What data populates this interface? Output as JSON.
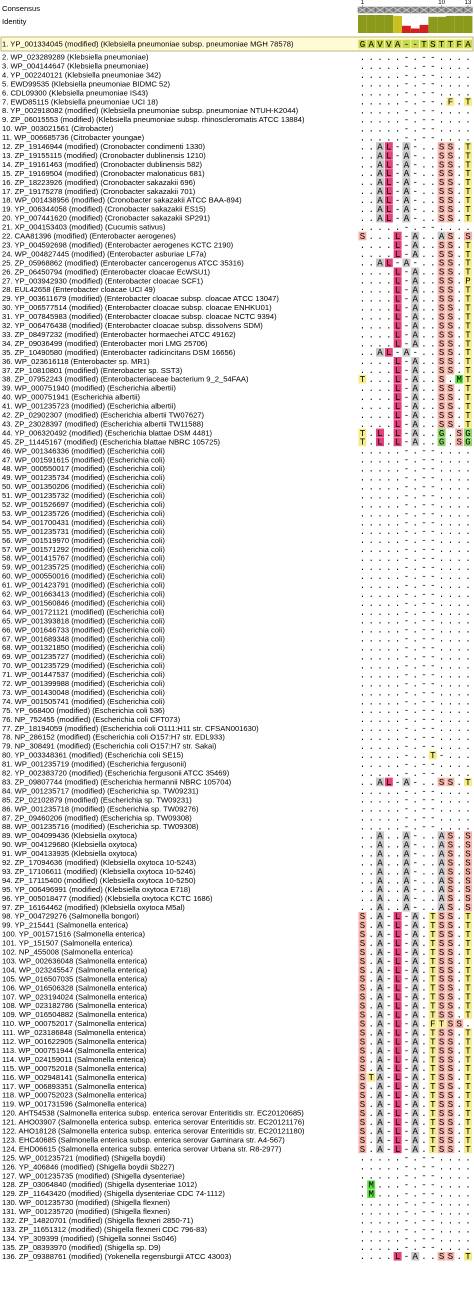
{
  "header": {
    "consensus_label": "Consensus",
    "identity_label": "Identity",
    "column_ticks": [
      1,
      10,
      13
    ]
  },
  "identity": {
    "values": [
      100,
      100,
      100,
      100,
      95,
      40,
      25,
      45,
      90,
      90,
      95,
      95,
      95
    ],
    "colors": [
      "#8b9a1a",
      "#8b9a1a",
      "#8b9a1a",
      "#8b9a1a",
      "#c8c020",
      "#d02020",
      "#d02020",
      "#d02020",
      "#8b9a1a",
      "#8b9a1a",
      "#8b9a1a",
      "#8b9a1a",
      "#8b9a1a"
    ]
  },
  "residue_colors": {
    "S": "#f3b4aa",
    "T": "#f5ec8c",
    "A": "#c8c8c8",
    "L": "#e2437c",
    "G": "#8fd46a",
    "F": "#f5ec8c",
    "M": "#5fdc40",
    "P": "#f5ec8c",
    "V": "#f5ec8c",
    "I": "#e2437c"
  },
  "rows": [
    [
      "1. YP_001334045 (modified) (Klebsiella pneumoniae subsp. pneumoniae MGH 78578)",
      "GAVVA--TSTTFA"
    ],
    [
      "2. WP_023289289 (Klebsiella pneumoniae)",
      ".....-.--...."
    ],
    [
      "3. WP_004144647 (Klebsiella pneumoniae)",
      ".....-.--...."
    ],
    [
      "4. YP_002240121 (Klebsiella pneumoniae 342)",
      ".....-.--...."
    ],
    [
      "5. EWD99535 (Klebsiella pneumoniae BIDMC 52)",
      ".....-.--...."
    ],
    [
      "6. CDL09300 (Klebsiella pneumoniae IS43)",
      ".....-.--...."
    ],
    [
      "7. EWD85115 (Klebsiella pneumoniae UCI 18)",
      ".....-.--.F.T"
    ],
    [
      "8. YP_002918082 (modified) (Klebsiella pneumoniae subsp. pneumoniae NTUH-K2044)",
      ".....-.--...."
    ],
    [
      "9. ZP_06015553 (modified) (Klebsiella pneumoniae subsp. rhinoscleromatis ATCC 13884)",
      ".....-.--...."
    ],
    [
      "10. WP_003021561 (Citrobacter)",
      ".....-.--...."
    ],
    [
      "11. WP_006685736 (Citrobacter youngae)",
      ".....-.--...."
    ],
    [
      "12. ZP_19146944 (modified) (Cronobacter condimenti 1330)",
      "..AL-A-..SS.T"
    ],
    [
      "13. ZP_19155115 (modified) (Cronobacter dublinensis 1210)",
      "..AL-A-..SS.T"
    ],
    [
      "14. ZP_19161463 (modified) (Cronobacter dublinensis 582)",
      "..AL-A-..SS.T"
    ],
    [
      "15. ZP_19169504 (modified) (Cronobacter malonaticus 681)",
      "..AL-A-..SS.T"
    ],
    [
      "16. ZP_18223926 (modified) (Cronobacter sakazakii 696)",
      "..AL-A-..SS.T"
    ],
    [
      "17. ZP_19175278 (modified) (Cronobacter sakazakii 701)",
      "..AL-A-..SS.T"
    ],
    [
      "18. WP_001438956 (modified) (Cronobacter sakazakii ATCC BAA-894)",
      "..AL-A-..SS.T"
    ],
    [
      "19. YP_006344058 (modified) (Cronobacter sakazakii ES15)",
      "..AL-A-..SS.T"
    ],
    [
      "20. YP_007441620 (modified) (Cronobacter sakazakii SP291)",
      "..AL-A-..SS.T"
    ],
    [
      "21. XP_004153403 (modified) (Cucumis sativus)",
      ".....-.--...."
    ],
    [
      "22. CAA81396 (modified) (Enterobacter aerogenes)",
      "S...L-A..AS.S"
    ],
    [
      "23. YP_004592698 (modified) (Enterobacter aerogenes KCTC 2190)",
      "....L-A..SS.T"
    ],
    [
      "24. WP_004827445 (modified) (Enterobacter asburiae LF7a)",
      "....L-A..SS.T"
    ],
    [
      "25. ZP_05968862 (modified) (Enterobacter cancerogenus ATCC 35316)",
      "..AL-A-..SS.T"
    ],
    [
      "26. ZP_06450794 (modified) (Enterobacter cloacae EcWSU1)",
      "....L-A..SS.T"
    ],
    [
      "27. YP_003942930 (modified) (Enterobacter cloacae SCF1)",
      "....L-A..SS.P"
    ],
    [
      "28. EUL42658 (Enterobacter cloacae UCI 49)",
      "....L-A..SS.T"
    ],
    [
      "29. YP_003611679 (modified) (Enterobacter cloacae subsp. cloacae ATCC 13047)",
      "....L-A..SS.T"
    ],
    [
      "30. YP_006577514 (modified) (Enterobacter cloacae subsp. cloacae ENHKU01)",
      "....L-A..SS.T"
    ],
    [
      "31. YP_007845983 (modified) (Enterobacter cloacae subsp. cloacae NCTC 9394)",
      "....L-A..SS.T"
    ],
    [
      "32. YP_006476438 (modified) (Enterobacter cloacae subsp. dissolvens SDM)",
      "....L-A..SS.T"
    ],
    [
      "33. ZP_08497232 (modified) (Enterobacter hormaechei ATCC 49162)",
      "....L-A..SS.T"
    ],
    [
      "34. ZP_09036499 (modified) (Enterobacter mori LMG 25706)",
      "....L-A..SS.T"
    ],
    [
      "35. ZP_10490580 (modified) (Enterobacter radicincitans DSM 16656)",
      "..AL-A-..SS.T"
    ],
    [
      "36. WP_023616118 (Enterobacter sp. MR1)",
      "....L-A..SS.T"
    ],
    [
      "37. ZP_10810801 (modified) (Enterobacter sp. SST3)",
      "....L-A..SS.T"
    ],
    [
      "38. ZP_07952243 (modified) (Enterobacteriaceae bacterium 9_2_54FAA)",
      "T...L-A..S.MT"
    ],
    [
      "39. WP_000751940 (modified) (Escherichia albertii)",
      "....L-A..SS.T"
    ],
    [
      "40. WP_000751941 (Escherichia albertii)",
      "....L-A..SS.T"
    ],
    [
      "41. WP_001235723 (modified) (Escherichia albertii)",
      "....L-A..SS.T"
    ],
    [
      "42. ZP_02902307 (modified) (Escherichia albertii TW07627)",
      "....L-A..SS.T"
    ],
    [
      "43. ZP_23028397 (modified) (Escherichia albertii TW11588)",
      "....L-A..SS.T"
    ],
    [
      "44. YP_006320492 (modified) (Escherichia blattae DSM 4481)",
      "T.L.L-A..G.SG"
    ],
    [
      "45. ZP_11445167 (modified) (Escherichia blattae NBRC 105725)",
      "T.L.L-A..G.SG"
    ],
    [
      "46. WP_001346336 (modified) (Escherichia coli)",
      ".....-.--...."
    ],
    [
      "47. WP_001591615 (modified) (Escherichia coli)",
      ".....-.--...."
    ],
    [
      "48. WP_000550017 (modified) (Escherichia coli)",
      ".....-.--...."
    ],
    [
      "49. WP_001235734 (modified) (Escherichia coli)",
      ".....-.--...."
    ],
    [
      "50. WP_001350206 (modified) (Escherichia coli)",
      ".....-.--...."
    ],
    [
      "51. WP_001235732 (modified) (Escherichia coli)",
      ".....-.--...."
    ],
    [
      "52. WP_001526697 (modified) (Escherichia coli)",
      ".....-.--...."
    ],
    [
      "53. WP_001235726 (modified) (Escherichia coli)",
      ".....-.--...."
    ],
    [
      "54. WP_001700431 (modified) (Escherichia coli)",
      ".....-.--...."
    ],
    [
      "55. WP_001235731 (modified) (Escherichia coli)",
      ".....-.--...."
    ],
    [
      "56. WP_001519970 (modified) (Escherichia coli)",
      ".....-.--...."
    ],
    [
      "57. WP_001571292 (modified) (Escherichia coli)",
      ".....-.--...."
    ],
    [
      "58. WP_001415767 (modified) (Escherichia coli)",
      ".....-.--...."
    ],
    [
      "59. WP_001235725 (modified) (Escherichia coli)",
      ".....-.--...."
    ],
    [
      "60. WP_000550016 (modified) (Escherichia coli)",
      ".....-.--...."
    ],
    [
      "61. WP_001423791 (modified) (Escherichia coli)",
      ".....-.--...."
    ],
    [
      "62. WP_001663413 (modified) (Escherichia coli)",
      ".....-.--...."
    ],
    [
      "63. WP_001560846 (modified) (Escherichia coli)",
      ".....-.--...."
    ],
    [
      "64. WP_001721121 (modified) (Escherichia coli)",
      ".....-.--...."
    ],
    [
      "65. WP_001393818 (modified) (Escherichia coli)",
      ".....-.--...."
    ],
    [
      "66. WP_001646733 (modified) (Escherichia coli)",
      ".....-.--...."
    ],
    [
      "67. WP_001689348 (modified) (Escherichia coli)",
      ".....-.--...."
    ],
    [
      "68. WP_001321850 (modified) (Escherichia coli)",
      ".....-.--...."
    ],
    [
      "69. WP_001235727 (modified) (Escherichia coli)",
      ".....-.--...."
    ],
    [
      "70. WP_001235729 (modified) (Escherichia coli)",
      ".....-.--...."
    ],
    [
      "71. WP_001447537 (modified) (Escherichia coli)",
      ".....-.--...."
    ],
    [
      "72. WP_001399988 (modified) (Escherichia coli)",
      ".....-.--...."
    ],
    [
      "73. WP_001430048 (modified) (Escherichia coli)",
      ".....-.--...."
    ],
    [
      "74. WP_001505741 (modified) (Escherichia coli)",
      ".....-.--...."
    ],
    [
      "75. YP_668400 (modified) (Escherichia coli 536)",
      ".....-.--...."
    ],
    [
      "76. NP_752455 (modified) (Escherichia coli CFT073)",
      ".....-.--...."
    ],
    [
      "77. ZP_18194059 (modified) (Escherichia coli O111:H11 str. CFSAN001630)",
      ".....-.--...."
    ],
    [
      "78. NP_286152 (modified) (Escherichia coli O157:H7 str. EDL933)",
      ".....-.--...."
    ],
    [
      "79. NP_308491 (modified) (Escherichia coli O157:H7 str. Sakai)",
      ".....-.--...."
    ],
    [
      "80. YP_003348361 (modified) (Escherichia coli SE15)",
      ".....-..T-..."
    ],
    [
      "81. WP_001235719 (modified) (Escherichia fergusonii)",
      ".....-.--...."
    ],
    [
      "82. YP_002383720 (modified) (Escherichia fergusonii ATCC 35469)",
      ".....-.--...."
    ],
    [
      "83. ZP_09807744 (modified) (Escherichia hermannii NBRC 105704)",
      "..AL-A-..SS.T"
    ],
    [
      "84. WP_001235717 (modified) (Escherichia sp. TW09231)",
      ".....-.--...."
    ],
    [
      "85. ZP_02102879 (modified) (Escherichia sp. TW09231)",
      ".....-.--...."
    ],
    [
      "86. WP_001235718 (modified) (Escherichia sp. TW09276)",
      ".....-.--...."
    ],
    [
      "87. ZP_09460206 (modified) (Escherichia sp. TW09308)",
      ".....-.--...."
    ],
    [
      "88. WP_001235716 (modified) (Escherichia sp. TW09308)",
      ".....-.--...."
    ],
    [
      "89. WP_004099436 (Klebsiella oxytoca)",
      "..A..A-..AS.S"
    ],
    [
      "90. WP_004129680 (Klebsiella oxytoca)",
      "..A..A-..AS.S"
    ],
    [
      "91. WP_004133935 (Klebsiella oxytoca)",
      "..A..A-..AS.S"
    ],
    [
      "92. ZP_17094636 (modified) (Klebsiella oxytoca 10-5243)",
      "..A..A-..AS.S"
    ],
    [
      "93. ZP_17106611 (modified) (Klebsiella oxytoca 10-5246)",
      "..A..A-..AS.S"
    ],
    [
      "94. ZP_17115400 (modified) (Klebsiella oxytoca 10-5250)",
      "..A..A-..AS.S"
    ],
    [
      "95. YP_006496991 (modified) (Klebsiella oxytoca E718)",
      "..A..A-..AS.S"
    ],
    [
      "96. YP_005018477 (modified) (Klebsiella oxytoca KCTC 1686)",
      "..A..A-..AS.S"
    ],
    [
      "97. ZP_16164462 (modified) (Klebsiella oxytoca M5al)",
      "..A..A-..AS.S"
    ],
    [
      "98. YP_004729276 (Salmonella bongori)",
      "S.A-L-A.TSS.T"
    ],
    [
      "99. YP_215441 (Salmonella enterica)",
      "S.A-L-A.TSS.T"
    ],
    [
      "100. YP_001571516 (Salmonella enterica)",
      "S.A-L-A.TSS.T"
    ],
    [
      "101. YP_151507 (Salmonella enterica)",
      "S.A-L-A.TSS.T"
    ],
    [
      "102. NP_455008 (Salmonella enterica)",
      "S.A-L-A.TSS.T"
    ],
    [
      "103. WP_002636048 (Salmonella enterica)",
      "S.A-L-A.TSS.T"
    ],
    [
      "104. WP_023245547 (Salmonella enterica)",
      "S.A-L-A.TSS.T"
    ],
    [
      "105. WP_016507035 (Salmonella enterica)",
      "S.A-L-A.TSS.T"
    ],
    [
      "106. WP_016506328 (Salmonella enterica)",
      "S.A-L-A.TSS.T"
    ],
    [
      "107. WP_023194024 (Salmonella enterica)",
      "S.A-L-A.TSS.T"
    ],
    [
      "108. WP_023182786 (Salmonella enterica)",
      "S.A-L-A.TSS.T"
    ],
    [
      "109. WP_016504882 (Salmonella enterica)",
      "S.A-L-A.TSS.T"
    ],
    [
      "110. WP_000752017 (Salmonella enterica)",
      "S.A-L-A.FTSS."
    ],
    [
      "111. WP_023186848 (Salmonella enterica)",
      "S.A-L-A.TSS.T"
    ],
    [
      "112. WP_001622905 (Salmonella enterica)",
      "S.A-L-A.TSS.T"
    ],
    [
      "113. WP_000751944 (Salmonella enterica)",
      "S.A-L-A.TSS.T"
    ],
    [
      "114. WP_024159011 (Salmonella enterica)",
      "S.A-L-A.TSS.T"
    ],
    [
      "115. WP_000752018 (Salmonella enterica)",
      "S.A-L-A.TSS.T"
    ],
    [
      "116. WP_002948141 (Salmonella enterica)",
      "STA-L-A.TSS.T"
    ],
    [
      "117. WP_006893351 (Salmonella enterica)",
      "S.A-L-A.TSS.T"
    ],
    [
      "118. WP_000752023 (Salmonella enterica)",
      "S.A-L-A.TSS.T"
    ],
    [
      "119. WP_001731596 (Salmonella enterica)",
      "S.A-L-A.TSS.T"
    ],
    [
      "120. AHT54538 (Salmonella enterica subsp. enterica serovar Enteritidis str. EC20120685)",
      "S.A-L-A.TSS.T"
    ],
    [
      "121. AHO03907 (Salmonella enterica subsp. enterica serovar Enteritidis str. EC20121176)",
      "S.A-L-A.TSS.T"
    ],
    [
      "122. AHO18128 (Salmonella enterica subsp. enterica serovar Enteritidis str. EC20121180)",
      "S.A-L-A.TSS.T"
    ],
    [
      "123. EHC40685 (Salmonella enterica subsp. enterica serovar Gaminara str. A4-567)",
      "S.A-L-A.TSS.T"
    ],
    [
      "124. EHD06615 (Salmonella enterica subsp. enterica serovar Urbana str. R8-2977)",
      "S.A-L-A.TSS.T"
    ],
    [
      "125. WP_001235721 (modified) (Shigella boydii)",
      ".....-.--...."
    ],
    [
      "126. YP_406846 (modified) (Shigella boydii Sb227)",
      ".....-.--...."
    ],
    [
      "127. WP_001235735 (modified) (Shigella dysenteriae)",
      ".....-.--...."
    ],
    [
      "128. ZP_03064840 (modified) (Shigella dysenteriae 1012)",
      ".M...-.--...."
    ],
    [
      "129. ZP_11643420 (modified) (Shigella dysenteriae CDC 74-1112)",
      ".M...-.--...."
    ],
    [
      "130. WP_001235730 (modified) (Shigella flexneri)",
      ".....-.--...."
    ],
    [
      "131. WP_001235720 (modified) (Shigella flexneri)",
      ".....-.--...."
    ],
    [
      "132. ZP_14820701 (modified) (Shigella flexneri 2850-71)",
      ".....-.--...."
    ],
    [
      "133. ZP_11651312 (modified) (Shigella flexneri CDC 796-83)",
      ".....-.--...."
    ],
    [
      "134. YP_309399 (modified) (Shigella sonnei Ss046)",
      ".....-.--...."
    ],
    [
      "135. ZP_08393970 (modified) (Shigella sp. D9)",
      ".....-.--...."
    ],
    [
      "136. ZP_09388761 (modified) (Yokenella regensburgii ATCC 43003)",
      "....L-A..SS.T"
    ]
  ]
}
